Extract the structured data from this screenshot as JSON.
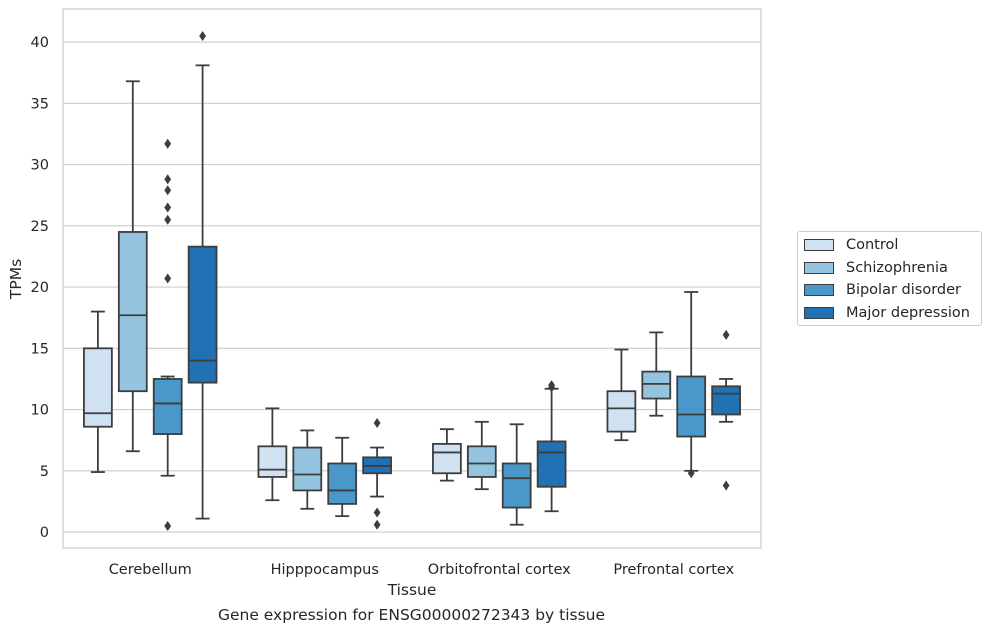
{
  "caption": "Gene expression for ENSG00000272343 by tissue",
  "chart_data": {
    "type": "boxplot",
    "title": "",
    "xlabel": "Tissue",
    "ylabel": "TPMs",
    "ylim": [
      -1.3,
      42.7
    ],
    "yticks": [
      0,
      5,
      10,
      15,
      20,
      25,
      30,
      35,
      40
    ],
    "grid": "horizontal",
    "legend_position": "right",
    "categories": [
      "Cerebellum",
      "Hipppocampus",
      "Orbitofrontal cortex",
      "Prefrontal cortex"
    ],
    "series": [
      {
        "name": "Control",
        "color": "#d0e1f2",
        "boxes": [
          {
            "whislo": 4.9,
            "q1": 8.6,
            "med": 9.7,
            "q3": 15.0,
            "whishi": 18.0,
            "fliers": []
          },
          {
            "whislo": 2.6,
            "q1": 4.5,
            "med": 5.1,
            "q3": 7.0,
            "whishi": 10.1,
            "fliers": []
          },
          {
            "whislo": 4.2,
            "q1": 4.8,
            "med": 6.5,
            "q3": 7.2,
            "whishi": 8.4,
            "fliers": []
          },
          {
            "whislo": 7.5,
            "q1": 8.2,
            "med": 10.1,
            "q3": 11.5,
            "whishi": 14.9,
            "fliers": []
          }
        ]
      },
      {
        "name": "Schizophrenia",
        "color": "#94c4df",
        "boxes": [
          {
            "whislo": 6.6,
            "q1": 11.5,
            "med": 17.7,
            "q3": 24.5,
            "whishi": 36.8,
            "fliers": []
          },
          {
            "whislo": 1.9,
            "q1": 3.4,
            "med": 4.7,
            "q3": 6.9,
            "whishi": 8.3,
            "fliers": []
          },
          {
            "whislo": 3.5,
            "q1": 4.5,
            "med": 5.6,
            "q3": 7.0,
            "whishi": 9.0,
            "fliers": []
          },
          {
            "whislo": 9.5,
            "q1": 10.9,
            "med": 12.1,
            "q3": 13.1,
            "whishi": 16.3,
            "fliers": []
          }
        ]
      },
      {
        "name": "Bipolar disorder",
        "color": "#4a98c9",
        "boxes": [
          {
            "whislo": 4.6,
            "q1": 8.0,
            "med": 10.5,
            "q3": 12.5,
            "whishi": 12.7,
            "fliers": [
              0.5,
              20.7,
              26.5,
              27.9,
              31.7,
              28.8,
              25.5
            ]
          },
          {
            "whislo": 1.3,
            "q1": 2.3,
            "med": 3.4,
            "q3": 5.6,
            "whishi": 7.7,
            "fliers": []
          },
          {
            "whislo": 0.6,
            "q1": 2.0,
            "med": 4.4,
            "q3": 5.6,
            "whishi": 8.8,
            "fliers": []
          },
          {
            "whislo": 5.0,
            "q1": 7.8,
            "med": 9.6,
            "q3": 12.7,
            "whishi": 19.6,
            "fliers": [
              4.8
            ]
          }
        ]
      },
      {
        "name": "Major depression",
        "color": "#2171b5",
        "boxes": [
          {
            "whislo": 1.1,
            "q1": 12.2,
            "med": 14.0,
            "q3": 23.3,
            "whishi": 38.1,
            "fliers": [
              40.5
            ]
          },
          {
            "whislo": 2.9,
            "q1": 4.8,
            "med": 5.4,
            "q3": 6.1,
            "whishi": 6.9,
            "fliers": [
              8.9,
              1.6,
              0.6
            ]
          },
          {
            "whislo": 1.7,
            "q1": 3.7,
            "med": 6.5,
            "q3": 7.4,
            "whishi": 11.7,
            "fliers": [
              11.8,
              12.0
            ]
          },
          {
            "whislo": 9.0,
            "q1": 9.6,
            "med": 11.3,
            "q3": 11.9,
            "whishi": 12.5,
            "fliers": [
              16.1,
              3.8
            ]
          }
        ]
      }
    ]
  }
}
